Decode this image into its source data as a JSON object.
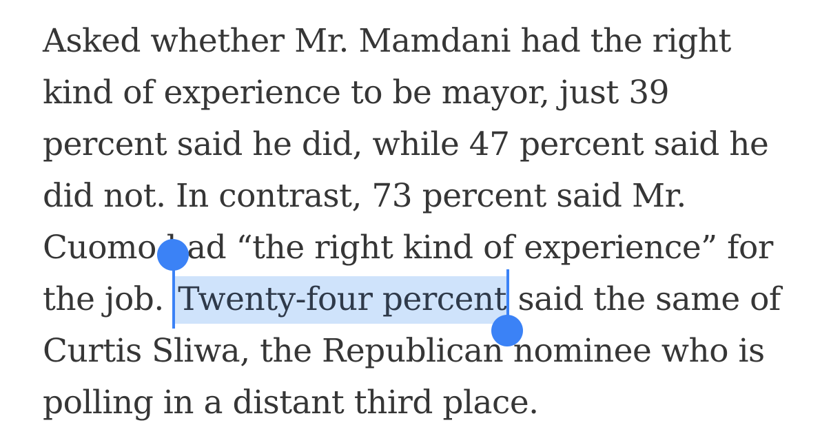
{
  "article": {
    "lines": [
      "Asked whether Mr. Mamdani had the right",
      "kind of experience to be mayor, just 39",
      "percent said he did, while 47 percent said he",
      "did not. In contrast, 73 percent said Mr.",
      "Cuomo had “the right kind of experience” for"
    ],
    "line6_before": "the job. ",
    "selected_text": "Twenty-four percent",
    "line6_after": " said the same of",
    "line7": "Curtis Sliwa, the Republican nominee who is",
    "line8": "polling in a distant third place."
  },
  "colors": {
    "text": "#363636",
    "selection_highlight": "#cfe3fb",
    "selection_handle": "#3b82f6"
  }
}
